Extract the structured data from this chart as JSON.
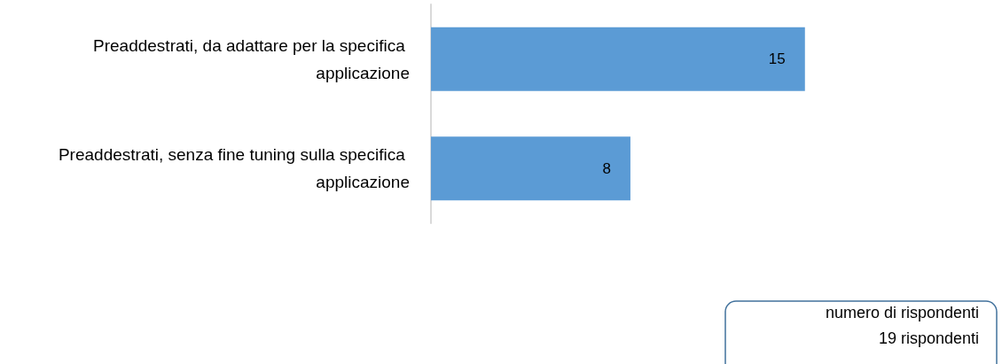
{
  "chart_data": {
    "type": "bar",
    "orientation": "horizontal",
    "categories": [
      "Preaddestrati, da adattare per la specifica applicazione",
      "Preaddestrati, senza fine tuning sulla specifica applicazione"
    ],
    "values": [
      15,
      8
    ],
    "color": "#5b9bd5",
    "data_labels": true,
    "annotations": [
      "numero di rispondenti",
      "19 rispondenti"
    ]
  }
}
